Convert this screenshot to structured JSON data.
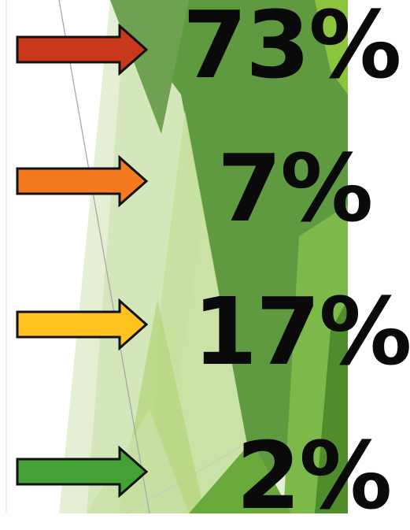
{
  "stats": [
    {
      "value": "73%",
      "arrow_color": "#c8391b"
    },
    {
      "value": "7%",
      "arrow_color": "#f47a20"
    },
    {
      "value": "17%",
      "arrow_color": "#ffc21e"
    },
    {
      "value": "2%",
      "arrow_color": "#43a234"
    }
  ],
  "theme": {
    "dark_green": "#5e9a3e",
    "mid_green": "#7fb84a",
    "light_green": "#b9d88f",
    "pale_green": "#dcebc6"
  }
}
